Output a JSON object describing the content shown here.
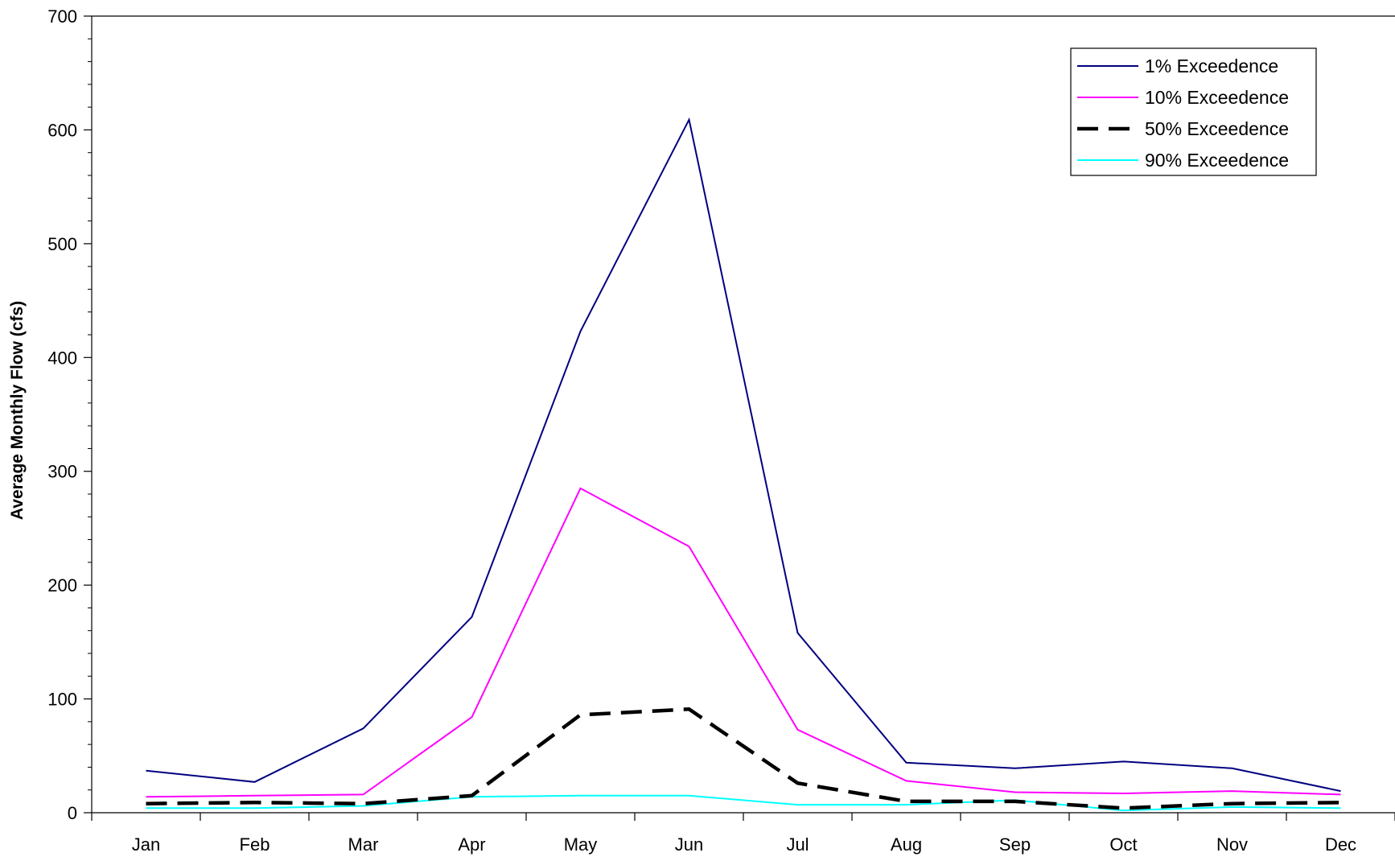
{
  "chart_data": {
    "type": "line",
    "title": "",
    "xlabel": "",
    "ylabel": "Average Monthly Flow (cfs)",
    "ylim": [
      0,
      700
    ],
    "yticks": [
      0,
      100,
      200,
      300,
      400,
      500,
      600,
      700
    ],
    "categories": [
      "Jan",
      "Feb",
      "Mar",
      "Apr",
      "May",
      "Jun",
      "Jul",
      "Aug",
      "Sep",
      "Oct",
      "Nov",
      "Dec"
    ],
    "grid": false,
    "legend_position": "top-right",
    "series": [
      {
        "name": "1% Exceedence",
        "color": "#000080",
        "style": "solid",
        "values": [
          37,
          27,
          74,
          172,
          423,
          609,
          158,
          44,
          39,
          45,
          39,
          19
        ]
      },
      {
        "name": "10% Exceedence",
        "color": "#ff00ff",
        "style": "solid",
        "values": [
          14,
          15,
          16,
          84,
          285,
          234,
          73,
          28,
          18,
          17,
          19,
          16
        ]
      },
      {
        "name": "50% Exceedence",
        "color": "#000000",
        "style": "dashed",
        "values": [
          8,
          9,
          8,
          15,
          86,
          91,
          26,
          10,
          10,
          4,
          8,
          9
        ]
      },
      {
        "name": "90% Exceedence",
        "color": "#00ffff",
        "style": "solid",
        "values": [
          4,
          4,
          6,
          14,
          15,
          15,
          7,
          7,
          11,
          2,
          5,
          4
        ]
      }
    ]
  }
}
